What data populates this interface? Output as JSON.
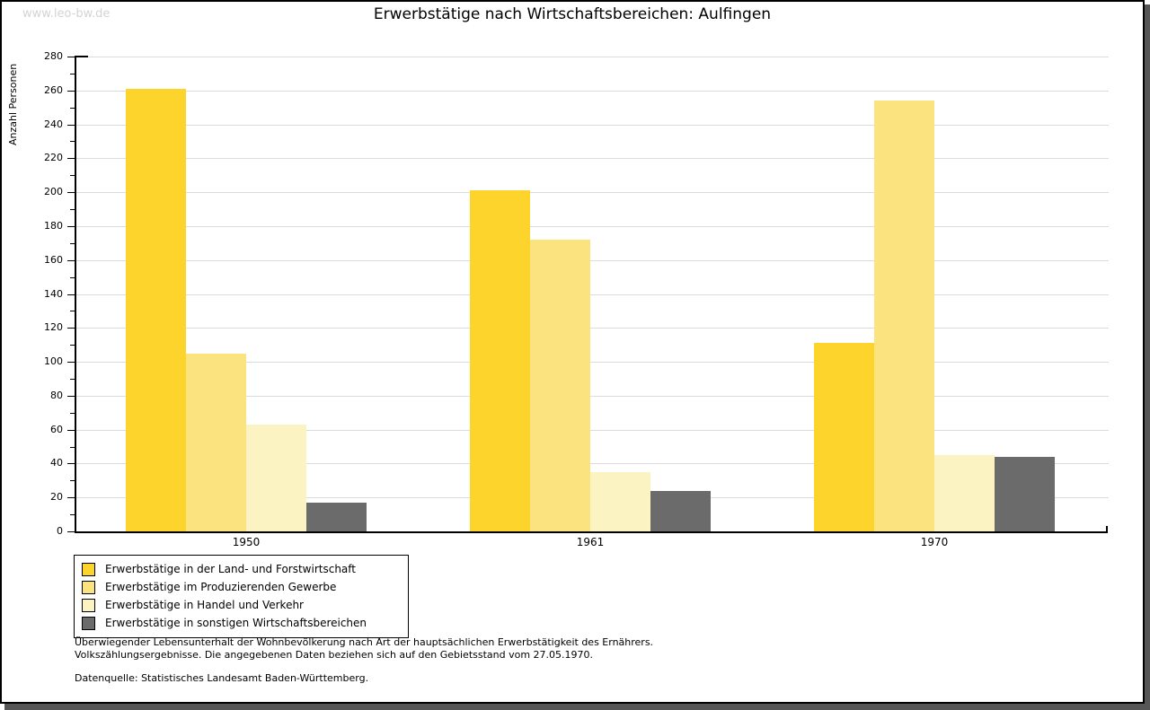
{
  "watermark": "www.leo-bw.de",
  "header": {
    "title": "Erwerbstätige nach Wirtschaftsbereichen: Aulfingen"
  },
  "chart_data": {
    "type": "bar",
    "title": "Erwerbstätige nach Wirtschaftsbereichen: Aulfingen",
    "xlabel": "",
    "ylabel": "Anzahl Personen",
    "categories": [
      "1950",
      "1961",
      "1970"
    ],
    "series": [
      {
        "name": "Erwerbstätige in der Land- und Forstwirtschaft",
        "color": "#FCD42C",
        "values": [
          261,
          201,
          111
        ]
      },
      {
        "name": "Erwerbstätige im Produzierenden Gewerbe",
        "color": "#FBE47F",
        "values": [
          105,
          172,
          254
        ]
      },
      {
        "name": "Erwerbstätige in Handel und Verkehr",
        "color": "#FCF3C3",
        "values": [
          63,
          35,
          45
        ]
      },
      {
        "name": "Erwerbstätige in sonstigen Wirtschaftsbereichen",
        "color": "#6B6B6B",
        "values": [
          17,
          24,
          44
        ]
      }
    ],
    "ylim": [
      0,
      280
    ],
    "ytick_major_step": 20,
    "ytick_minor_step": 10,
    "grid": true,
    "legend_position": "bottom-left"
  },
  "footer": {
    "line1": "Überwiegender Lebensunterhalt der Wohnbevölkerung nach Art der hauptsächlichen Erwerbstätigkeit des Ernährers.",
    "line2": "Volkszählungsergebnisse. Die angegebenen Daten beziehen sich auf den Gebietsstand vom 27.05.1970.",
    "source": "Datenquelle: Statistisches Landesamt Baden-Württemberg."
  },
  "colors": {
    "gridline": "#DCDCDC",
    "axis": "#000000",
    "watermark": "#D4D4D4",
    "shadow": "#565656",
    "text": "#000000"
  }
}
